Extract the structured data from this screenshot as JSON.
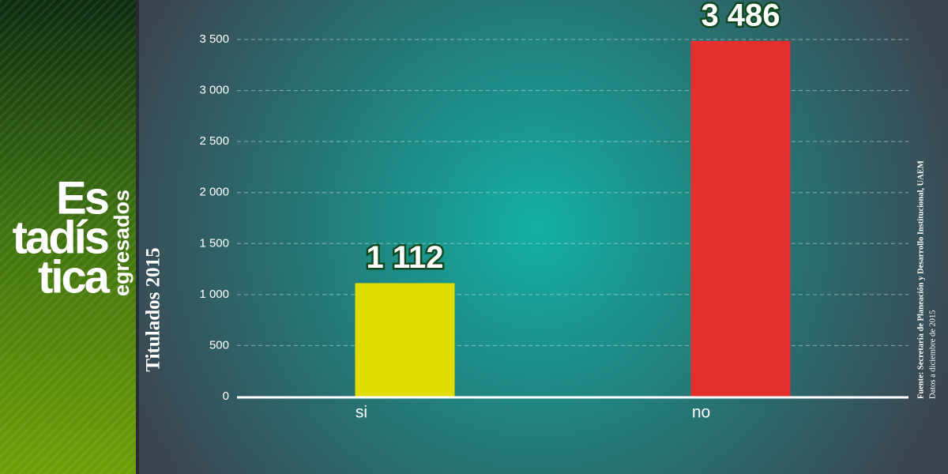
{
  "chart_data": {
    "type": "bar",
    "side_title": [
      "Es",
      "tadís",
      "tica"
    ],
    "side_subtitle": "egresados",
    "ylabel": "Titulados 2015",
    "source": [
      "Fuente: Secretaría de Planeación y Desarrollo Institucional, UAEM",
      "Datos a diciembre de 2015"
    ],
    "categories": [
      "si",
      "no"
    ],
    "values": [
      1112,
      3486
    ],
    "value_labels": [
      "1 112",
      "3 486"
    ],
    "colors": [
      "#e0dc00",
      "#e3302f"
    ],
    "ylim": [
      0,
      3500
    ],
    "yticks": [
      0,
      500,
      {
        "value": 1000,
        "label": "1 000"
      },
      {
        "value": 1500,
        "label": "1 500"
      },
      {
        "value": 2000,
        "label": "2 000"
      },
      {
        "value": 2500,
        "label": "2 500"
      },
      {
        "value": 3000,
        "label": "3 000"
      },
      {
        "value": 3500,
        "label": "3 500"
      }
    ],
    "grid": true
  }
}
